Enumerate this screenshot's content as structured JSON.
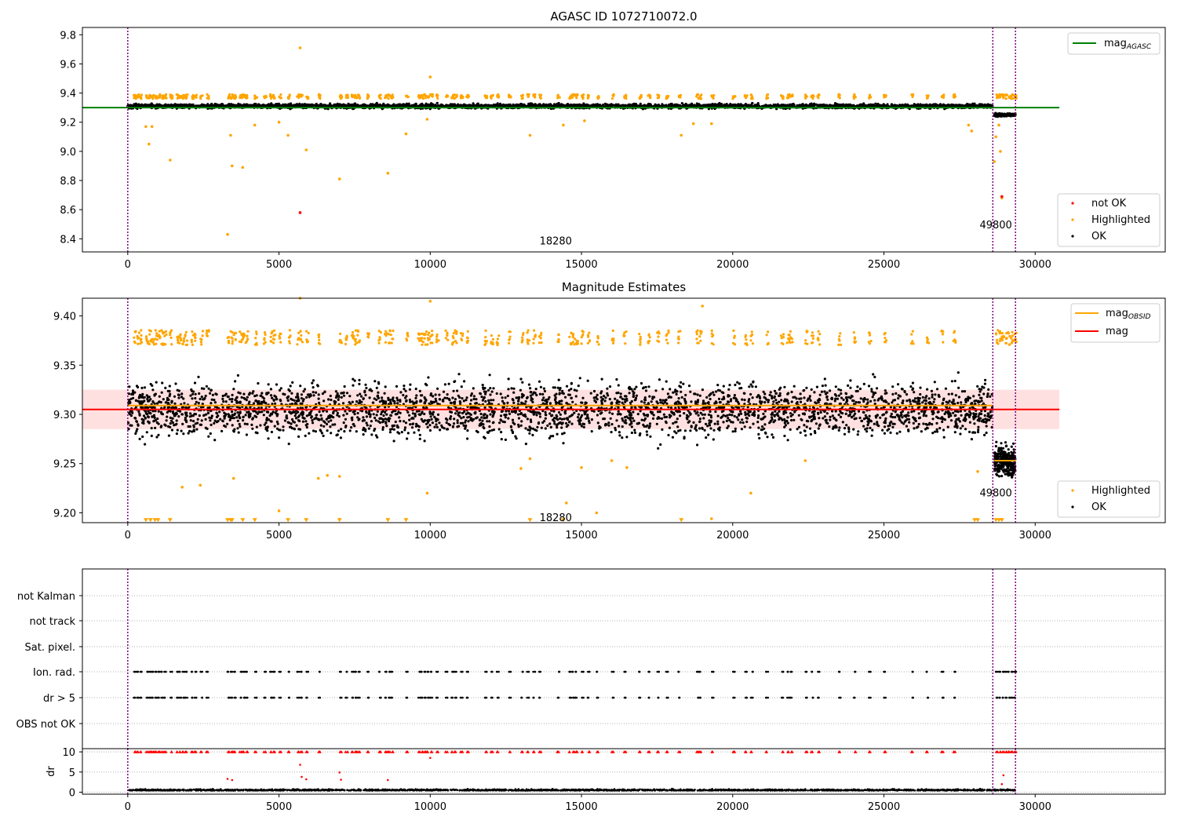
{
  "chart_data": [
    {
      "type": "scatter",
      "title": "AGASC ID 1072710072.0",
      "xlim": [
        -1500,
        34300
      ],
      "ylim": [
        8.31,
        9.85
      ],
      "xticks": [
        0,
        5000,
        10000,
        15000,
        20000,
        25000,
        30000
      ],
      "yticks": [
        8.4,
        8.6,
        8.8,
        9.0,
        9.2,
        9.4,
        9.6,
        9.8
      ],
      "ytick_labels": [
        "8.4",
        "8.6",
        "8.8",
        "9.0",
        "9.2",
        "9.4",
        "9.6",
        "9.8"
      ],
      "reference_line": {
        "name": "mag$_{AGASC}$",
        "legend_main": "mag",
        "legend_sub": "AGASC",
        "y": 9.3,
        "x_range": [
          -1500,
          30800
        ],
        "color": "#008000"
      },
      "obs_lines": [
        0,
        28600,
        29350
      ],
      "obs_labels": [
        {
          "text": "18280",
          "x": 14150,
          "y": 8.35
        },
        {
          "text": "49800",
          "x": 28700,
          "y": 8.46
        }
      ],
      "series": [
        {
          "name": "OK",
          "color": "#000000",
          "band": {
            "x0": 0,
            "x1": 28600,
            "center": 9.31,
            "spread": 0.025
          },
          "band2": {
            "x0": 28650,
            "x1": 29350,
            "center": 9.25,
            "spread": 0.015
          }
        },
        {
          "name": "Highlighted",
          "color": "#ffa500",
          "groups_y": 9.37,
          "points": [
            [
              600,
              9.17
            ],
            [
              700,
              9.05
            ],
            [
              800,
              9.17
            ],
            [
              1400,
              8.94
            ],
            [
              3300,
              8.43
            ],
            [
              3400,
              9.11
            ],
            [
              3450,
              8.9
            ],
            [
              3800,
              8.89
            ],
            [
              4200,
              9.18
            ],
            [
              5000,
              9.2
            ],
            [
              5300,
              9.11
            ],
            [
              5700,
              9.71
            ],
            [
              5900,
              9.01
            ],
            [
              7000,
              8.81
            ],
            [
              8600,
              8.85
            ],
            [
              9200,
              9.12
            ],
            [
              9900,
              9.22
            ],
            [
              10000,
              9.51
            ],
            [
              13300,
              9.11
            ],
            [
              14400,
              9.18
            ],
            [
              15100,
              9.21
            ],
            [
              18300,
              9.11
            ],
            [
              18700,
              9.19
            ],
            [
              19300,
              9.19
            ],
            [
              27800,
              9.18
            ],
            [
              27900,
              9.14
            ],
            [
              28650,
              8.93
            ],
            [
              28700,
              9.1
            ],
            [
              28800,
              9.18
            ],
            [
              28850,
              9.0
            ],
            [
              28900,
              8.68
            ]
          ]
        },
        {
          "name": "not OK",
          "color": "#ff0000",
          "points": [
            [
              5700,
              8.58
            ],
            [
              28900,
              8.69
            ]
          ]
        }
      ],
      "legend_upper": "top-right",
      "legend_lower": "bottom-right"
    },
    {
      "type": "scatter",
      "title": "Magnitude Estimates",
      "xlim": [
        -1500,
        34300
      ],
      "ylim": [
        9.19,
        9.418
      ],
      "xticks": [
        0,
        5000,
        10000,
        15000,
        20000,
        25000,
        30000
      ],
      "yticks": [
        9.2,
        9.25,
        9.3,
        9.35,
        9.4
      ],
      "ytick_labels": [
        "9.20",
        "9.25",
        "9.30",
        "9.35",
        "9.40"
      ],
      "mag_line": {
        "name": "mag",
        "y": 9.305,
        "band": [
          9.285,
          9.325
        ],
        "x_range": [
          -1500,
          30800
        ],
        "color": "#ff0000"
      },
      "obsid_lines": [
        {
          "y": 9.309,
          "x_range": [
            0,
            28600
          ]
        },
        {
          "y": 9.253,
          "x_range": [
            28650,
            29350
          ]
        }
      ],
      "obsid_legend": {
        "main": "mag",
        "sub": "OBSID",
        "color": "#ffa500"
      },
      "obs_lines": [
        0,
        28600,
        29350
      ],
      "obs_labels": [
        {
          "text": "18280",
          "x": 14150,
          "y": 9.19
        },
        {
          "text": "49800",
          "x": 28700,
          "y": 9.215
        }
      ],
      "series": [
        {
          "name": "OK",
          "color": "#000000",
          "band": {
            "x0": 0,
            "x1": 28600,
            "center": 9.305,
            "spread": 0.045
          },
          "band2": {
            "x0": 28650,
            "x1": 29350,
            "center": 9.252,
            "spread": 0.025
          }
        },
        {
          "name": "Highlighted",
          "color": "#ffa500",
          "groups_y": 9.375,
          "points": [
            [
              1800,
              9.226
            ],
            [
              2400,
              9.228
            ],
            [
              3500,
              9.235
            ],
            [
              5000,
              9.202
            ],
            [
              6300,
              9.235
            ],
            [
              6600,
              9.238
            ],
            [
              7000,
              9.237
            ],
            [
              9900,
              9.22
            ],
            [
              10000,
              9.415
            ],
            [
              13000,
              9.245
            ],
            [
              13300,
              9.255
            ],
            [
              14500,
              9.21
            ],
            [
              15000,
              9.246
            ],
            [
              15500,
              9.2
            ],
            [
              16000,
              9.253
            ],
            [
              16500,
              9.246
            ],
            [
              19000,
              9.41
            ],
            [
              19300,
              9.194
            ],
            [
              20600,
              9.22
            ],
            [
              22400,
              9.253
            ],
            [
              28100,
              9.242
            ],
            [
              5700,
              9.418
            ]
          ],
          "triangles_y": 9.193,
          "triangles_x": [
            600,
            750,
            900,
            1000,
            1400,
            3300,
            3400,
            3450,
            3800,
            4200,
            5300,
            5900,
            7000,
            8600,
            9200,
            13300,
            14400,
            18300,
            28000,
            28100,
            28700,
            28800,
            28900
          ]
        }
      ],
      "legend_upper": "top-right",
      "legend_lower": "bottom-right"
    },
    {
      "type": "scatter",
      "xlim": [
        -1500,
        34300
      ],
      "xticks": [
        0,
        5000,
        10000,
        15000,
        20000,
        25000,
        30000
      ],
      "categories": [
        "not Kalman",
        "not track",
        "Sat. pixel.",
        "Ion. rad.",
        "dr > 5",
        "OBS not OK"
      ],
      "flag_groups_x": [
        200,
        300,
        400,
        600,
        700,
        800,
        900,
        1000,
        1100,
        1200,
        1400,
        1600,
        1700,
        1800,
        1900,
        2100,
        2200,
        2400,
        2600,
        3300,
        3400,
        3500,
        3700,
        3800,
        3900,
        4200,
        4500,
        4700,
        4800,
        5000,
        5300,
        5600,
        5700,
        5900,
        6300,
        7000,
        7200,
        7400,
        7500,
        7600,
        7900,
        8300,
        8500,
        8600,
        8700,
        9200,
        9600,
        9700,
        9800,
        9900,
        10000,
        10200,
        10500,
        10700,
        10800,
        11000,
        11200,
        11800,
        12000,
        12200,
        12600,
        13000,
        13200,
        13400,
        13600,
        14200,
        14600,
        14700,
        14800,
        15000,
        15200,
        15500,
        16000,
        16400,
        16900,
        17200,
        17500,
        17800,
        18200,
        18800,
        18900,
        19300,
        20000,
        20400,
        20600,
        21100,
        21600,
        21800,
        21900,
        22400,
        22600,
        22800,
        23500,
        24000,
        24500,
        25000,
        25900,
        26400,
        26900,
        27300,
        28700,
        28800,
        28900,
        29000,
        29100,
        29200,
        29300
      ],
      "dr": {
        "ylabel": "dr",
        "ylim": [
          -0.5,
          10.8
        ],
        "yticks": [
          0,
          5,
          10
        ],
        "clip_line": 10,
        "ok_band": {
          "x0": 0,
          "x1": 29350,
          "center": 0.4,
          "spread": 0.5
        },
        "outliers": [
          [
            3300,
            3.3
          ],
          [
            3450,
            3.0
          ],
          [
            5700,
            6.8
          ],
          [
            5750,
            3.8
          ],
          [
            5900,
            3.2
          ],
          [
            7000,
            4.9
          ],
          [
            7050,
            3.1
          ],
          [
            8600,
            3.0
          ],
          [
            10000,
            8.5
          ],
          [
            28900,
            2.0
          ],
          [
            28950,
            4.2
          ]
        ]
      },
      "obs_lines": [
        0,
        28600,
        29350
      ]
    }
  ],
  "colors": {
    "ok": "#000000",
    "highlighted": "#ffa500",
    "not_ok": "#ff0000",
    "agasc_line": "#008000",
    "obs_line": "#800080",
    "grid": "#b0b0b0"
  }
}
